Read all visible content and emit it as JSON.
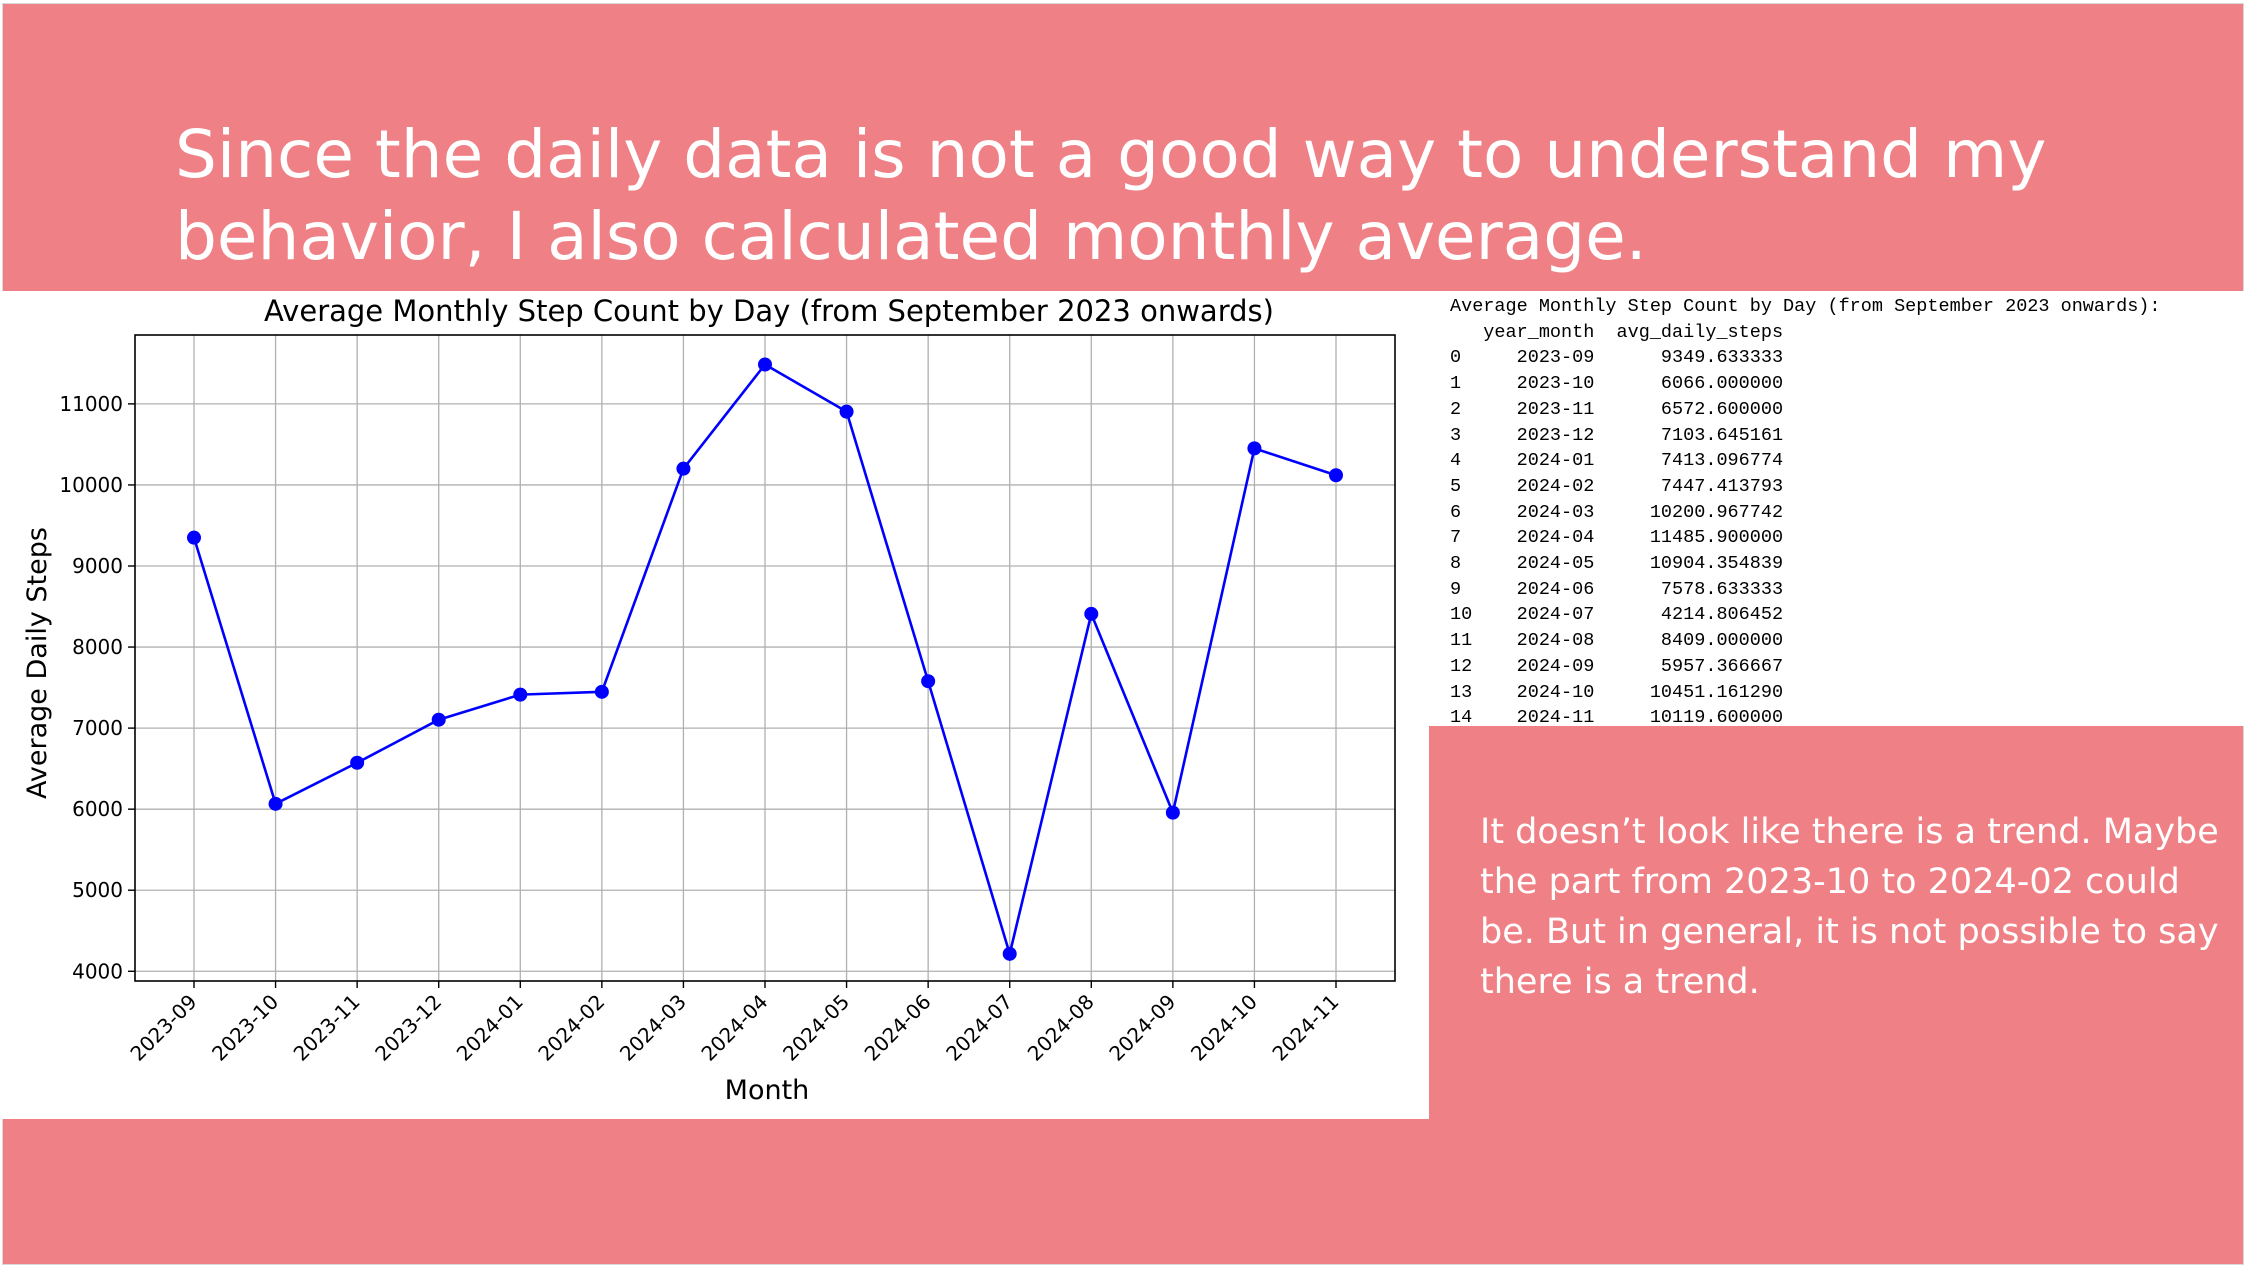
{
  "slide": {
    "title_lines": [
      "Since the daily data is not a good way to understand my",
      "behavior, I also calculated monthly average."
    ],
    "note": "It doesn’t look like there is a trend. Maybe the part  from 2023-10 to 2024-02 could be. But in general, it is not possible to say there is a trend."
  },
  "table": {
    "caption": "Average Monthly Step Count by Day (from September 2023 onwards):",
    "columns": [
      "year_month",
      "avg_daily_steps"
    ],
    "rows": [
      [
        "0",
        "2023-09",
        "9349.633333"
      ],
      [
        "1",
        "2023-10",
        "6066.000000"
      ],
      [
        "2",
        "2023-11",
        "6572.600000"
      ],
      [
        "3",
        "2023-12",
        "7103.645161"
      ],
      [
        "4",
        "2024-01",
        "7413.096774"
      ],
      [
        "5",
        "2024-02",
        "7447.413793"
      ],
      [
        "6",
        "2024-03",
        "10200.967742"
      ],
      [
        "7",
        "2024-04",
        "11485.900000"
      ],
      [
        "8",
        "2024-05",
        "10904.354839"
      ],
      [
        "9",
        "2024-06",
        "7578.633333"
      ],
      [
        "10",
        "2024-07",
        "4214.806452"
      ],
      [
        "11",
        "2024-08",
        "8409.000000"
      ],
      [
        "12",
        "2024-09",
        "5957.366667"
      ],
      [
        "13",
        "2024-10",
        "10451.161290"
      ],
      [
        "14",
        "2024-11",
        "10119.600000"
      ]
    ]
  },
  "chart_data": {
    "type": "line",
    "title": "Average Monthly Step Count by Day (from September 2023 onwards)",
    "xlabel": "Month",
    "ylabel": "Average Daily Steps",
    "categories": [
      "2023-09",
      "2023-10",
      "2023-11",
      "2023-12",
      "2024-01",
      "2024-02",
      "2024-03",
      "2024-04",
      "2024-05",
      "2024-06",
      "2024-07",
      "2024-08",
      "2024-09",
      "2024-10",
      "2024-11"
    ],
    "values": [
      9349.633333,
      6066.0,
      6572.6,
      7103.645161,
      7413.096774,
      7447.413793,
      10200.967742,
      11485.9,
      10904.354839,
      7578.633333,
      4214.806452,
      8409.0,
      5957.366667,
      10451.16129,
      10119.6
    ],
    "yticks": [
      4000,
      5000,
      6000,
      7000,
      8000,
      9000,
      10000,
      11000
    ],
    "ylim": [
      3880,
      11850
    ],
    "grid": true,
    "line_color": "#0000ff",
    "marker": "circle"
  }
}
